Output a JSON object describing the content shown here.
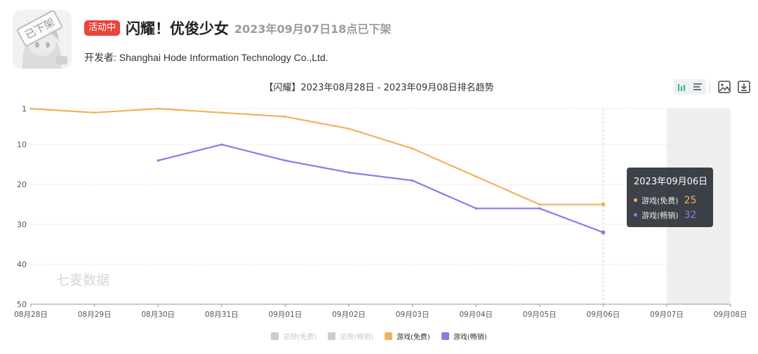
{
  "header": {
    "removed_stamp": "已下架",
    "status_badge": "活动中",
    "app_title": "闪耀！优俊少女",
    "offline_note": "2023年09月07日18点已下架",
    "developer_label": "开发者:",
    "developer_name": "Shanghai Hode Information Technology Co.,Ltd."
  },
  "toolbar": {
    "icons": [
      "bar-chart-icon",
      "list-icon",
      "image-icon",
      "download-icon"
    ]
  },
  "watermark": "七麦数据",
  "tooltip": {
    "date": "2023年09月06日",
    "rows": [
      {
        "name": "游戏(免费)",
        "value": "25",
        "color": "#f0b35a"
      },
      {
        "name": "游戏(畅销)",
        "value": "32",
        "color": "#8b7be6"
      }
    ]
  },
  "colors": {
    "free": "#f0b35a",
    "grossing": "#8b7be6",
    "disabled": "#cccccc",
    "grid": "#e3e3e3",
    "shade": "#efefef"
  },
  "legend": [
    {
      "label": "总榜(免费)",
      "color": "#cccccc",
      "active": false
    },
    {
      "label": "总榜(畅销)",
      "color": "#cccccc",
      "active": false
    },
    {
      "label": "游戏(免费)",
      "color": "#f0b35a",
      "active": true
    },
    {
      "label": "游戏(畅销)",
      "color": "#8b7be6",
      "active": true
    }
  ],
  "chart_data": {
    "type": "line",
    "title": "【闪耀】2023年08月28日 - 2023年09月08日排名趋势",
    "categories": [
      "08月28日",
      "08月29日",
      "08月30日",
      "08月31日",
      "09月01日",
      "09月02日",
      "09月03日",
      "09月04日",
      "09月05日",
      "09月06日",
      "09月07日",
      "09月08日"
    ],
    "y_ticks": [
      1,
      10,
      20,
      30,
      40,
      50
    ],
    "ylim": [
      1,
      50
    ],
    "y_inverted": true,
    "grid": true,
    "shaded_categories": [
      "09月07日",
      "09月08日"
    ],
    "highlight_category": "09月06日",
    "series": [
      {
        "name": "游戏(免费)",
        "color": "#f0b35a",
        "values": [
          1,
          2,
          1,
          2,
          3,
          6,
          11,
          18,
          25,
          25,
          null,
          null
        ]
      },
      {
        "name": "游戏(畅销)",
        "color": "#8b7be6",
        "values": [
          null,
          null,
          14,
          10,
          14,
          17,
          19,
          26,
          26,
          32,
          null,
          null
        ]
      }
    ]
  }
}
